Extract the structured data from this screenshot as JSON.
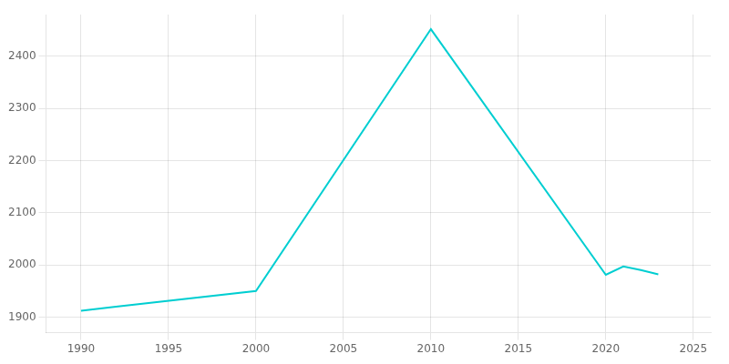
{
  "chart_data": {
    "type": "line",
    "x": [
      1990,
      1992,
      2000,
      2010,
      2020,
      2021,
      2022,
      2023
    ],
    "values": [
      1912,
      1920,
      1950,
      2452,
      1981,
      1997,
      1990,
      1982
    ],
    "color": "#00CED1",
    "xlim": [
      1988,
      2026
    ],
    "ylim": [
      1870,
      2480
    ],
    "xticks": [
      1990,
      1995,
      2000,
      2005,
      2010,
      2015,
      2020,
      2025
    ],
    "yticks": [
      1900,
      2000,
      2100,
      2200,
      2300,
      2400
    ],
    "grid": true
  }
}
